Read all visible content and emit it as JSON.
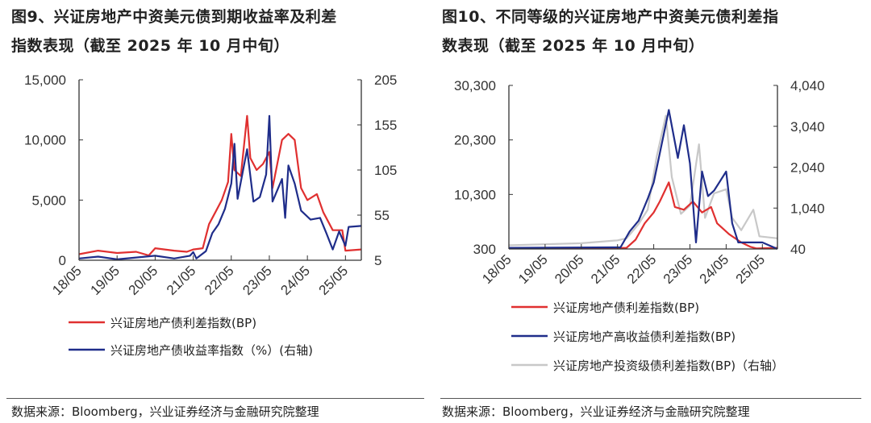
{
  "source_left": "数据来源：Bloomberg，兴业证券经济与金融研究院整理",
  "source_right": "数据来源：Bloomberg，兴业证券经济与金融研究院整理",
  "chart_data": [
    {
      "type": "line",
      "title_line1": "图9、兴证房地产中资美元债到期收益率及利差",
      "title_line2": "指数表现（截至 2025 年 10 月中旬）",
      "x_ticks": [
        "18/05",
        "19/05",
        "20/05",
        "21/05",
        "22/05",
        "23/05",
        "24/05",
        "25/05"
      ],
      "xlim": [
        "2018-05",
        "2025-10"
      ],
      "y_left": {
        "lim": [
          0,
          15000
        ],
        "ticks": [
          "0",
          "5,000",
          "10,000",
          "15,000"
        ],
        "tick_values": [
          0,
          5000,
          10000,
          15000
        ]
      },
      "y_right": {
        "lim": [
          5,
          205
        ],
        "ticks": [
          "5",
          "55",
          "105",
          "155",
          "205"
        ],
        "tick_values": [
          5,
          55,
          105,
          155,
          205
        ]
      },
      "grid": false,
      "legend_position": "bottom",
      "series": [
        {
          "name": "兴证房地产债利差指数(BP)",
          "axis": "left",
          "color": "#e03030",
          "points": [
            [
              "2018-05",
              500
            ],
            [
              "2018-11",
              800
            ],
            [
              "2019-05",
              600
            ],
            [
              "2019-11",
              700
            ],
            [
              "2020-03",
              400
            ],
            [
              "2020-05",
              1000
            ],
            [
              "2020-11",
              800
            ],
            [
              "2021-03",
              700
            ],
            [
              "2021-05",
              900
            ],
            [
              "2021-08",
              1000
            ],
            [
              "2021-10",
              3000
            ],
            [
              "2021-12",
              4000
            ],
            [
              "2022-02",
              5000
            ],
            [
              "2022-04",
              6500
            ],
            [
              "2022-05",
              10500
            ],
            [
              "2022-06",
              7500
            ],
            [
              "2022-08",
              7000
            ],
            [
              "2022-10",
              12000
            ],
            [
              "2022-11",
              8500
            ],
            [
              "2023-01",
              7500
            ],
            [
              "2023-03",
              8000
            ],
            [
              "2023-05",
              9000
            ],
            [
              "2023-06",
              6000
            ],
            [
              "2023-09",
              10000
            ],
            [
              "2023-11",
              10500
            ],
            [
              "2024-01",
              10000
            ],
            [
              "2024-03",
              6000
            ],
            [
              "2024-05",
              5000
            ],
            [
              "2024-08",
              5500
            ],
            [
              "2024-10",
              4000
            ],
            [
              "2025-01",
              2500
            ],
            [
              "2025-04",
              2500
            ],
            [
              "2025-05",
              800
            ],
            [
              "2025-10",
              900
            ]
          ]
        },
        {
          "name": "兴证房地产债收益率指数（%）(右轴)",
          "axis": "right",
          "color": "#1f2d8a",
          "points": [
            [
              "2018-05",
              7
            ],
            [
              "2018-11",
              9
            ],
            [
              "2019-05",
              6
            ],
            [
              "2020-05",
              10
            ],
            [
              "2020-11",
              7
            ],
            [
              "2021-04",
              10
            ],
            [
              "2021-05",
              14
            ],
            [
              "2021-06",
              7
            ],
            [
              "2021-09",
              15
            ],
            [
              "2021-11",
              35
            ],
            [
              "2022-01",
              45
            ],
            [
              "2022-03",
              62
            ],
            [
              "2022-05",
              90
            ],
            [
              "2022-06",
              134
            ],
            [
              "2022-07",
              73
            ],
            [
              "2022-10",
              128
            ],
            [
              "2022-12",
              70
            ],
            [
              "2023-02",
              75
            ],
            [
              "2023-04",
              100
            ],
            [
              "2023-05",
              165
            ],
            [
              "2023-06",
              70
            ],
            [
              "2023-09",
              95
            ],
            [
              "2023-10",
              52
            ],
            [
              "2023-11",
              110
            ],
            [
              "2024-01",
              90
            ],
            [
              "2024-03",
              60
            ],
            [
              "2024-06",
              50
            ],
            [
              "2024-09",
              52
            ],
            [
              "2024-11",
              35
            ],
            [
              "2025-01",
              17
            ],
            [
              "2025-03",
              37
            ],
            [
              "2025-05",
              21
            ],
            [
              "2025-06",
              42
            ],
            [
              "2025-10",
              43
            ]
          ]
        }
      ]
    },
    {
      "type": "line",
      "title_line1": "图10、不同等级的兴证房地产中资美元债利差指",
      "title_line2": "数表现（截至 2025 年 10 月中旬）",
      "x_ticks": [
        "18/05",
        "19/05",
        "20/05",
        "21/05",
        "22/05",
        "23/05",
        "24/05",
        "25/05"
      ],
      "xlim": [
        "2018-05",
        "2025-10"
      ],
      "y_left": {
        "lim": [
          300,
          30300
        ],
        "ticks": [
          "300",
          "10,300",
          "20,300",
          "30,300"
        ],
        "tick_values": [
          300,
          10300,
          20300,
          30300
        ]
      },
      "y_right": {
        "lim": [
          40,
          4040
        ],
        "ticks": [
          "40",
          "1,040",
          "2,040",
          "3,040",
          "4,040"
        ],
        "tick_values": [
          40,
          1040,
          2040,
          3040,
          4040
        ]
      },
      "grid": false,
      "legend_position": "bottom",
      "series": [
        {
          "name": "兴证房地产投资级债利差指数(BP)（右轴）",
          "axis": "right",
          "color": "#c8c8c8",
          "points": [
            [
              "2018-05",
              130
            ],
            [
              "2020-05",
              180
            ],
            [
              "2021-05",
              250
            ],
            [
              "2021-08",
              300
            ],
            [
              "2021-12",
              650
            ],
            [
              "2022-03",
              1000
            ],
            [
              "2022-06",
              2300
            ],
            [
              "2022-09",
              3300
            ],
            [
              "2022-11",
              1800
            ],
            [
              "2023-02",
              900
            ],
            [
              "2023-05",
              1100
            ],
            [
              "2023-08",
              2600
            ],
            [
              "2023-10",
              800
            ],
            [
              "2024-01",
              1400
            ],
            [
              "2024-05",
              1500
            ],
            [
              "2024-07",
              800
            ],
            [
              "2024-10",
              500
            ],
            [
              "2025-02",
              1000
            ],
            [
              "2025-04",
              350
            ],
            [
              "2025-10",
              300
            ]
          ]
        },
        {
          "name": "兴证房地产债利差指数(BP)",
          "axis": "left",
          "color": "#e03030",
          "points": [
            [
              "2018-05",
              400
            ],
            [
              "2021-08",
              500
            ],
            [
              "2021-11",
              2000
            ],
            [
              "2022-02",
              5000
            ],
            [
              "2022-05",
              7000
            ],
            [
              "2022-07",
              9000
            ],
            [
              "2022-10",
              12500
            ],
            [
              "2022-12",
              8000
            ],
            [
              "2023-03",
              7500
            ],
            [
              "2023-06",
              9000
            ],
            [
              "2023-09",
              7000
            ],
            [
              "2023-12",
              8000
            ],
            [
              "2024-02",
              5000
            ],
            [
              "2024-06",
              3000
            ],
            [
              "2024-10",
              1500
            ],
            [
              "2025-01",
              700
            ],
            [
              "2025-03",
              400
            ],
            [
              "2025-10",
              500
            ]
          ]
        },
        {
          "name": "兴证房地产高收益债利差指数(BP)",
          "axis": "left",
          "color": "#1f2d8a",
          "points": [
            [
              "2018-05",
              500
            ],
            [
              "2021-06",
              600
            ],
            [
              "2021-09",
              3500
            ],
            [
              "2021-12",
              5500
            ],
            [
              "2022-03",
              9500
            ],
            [
              "2022-05",
              12500
            ],
            [
              "2022-10",
              25800
            ],
            [
              "2023-01",
              17000
            ],
            [
              "2023-03",
              23000
            ],
            [
              "2023-05",
              16000
            ],
            [
              "2023-07",
              1500
            ],
            [
              "2023-09",
              14500
            ],
            [
              "2023-11",
              10000
            ],
            [
              "2024-01",
              11000
            ],
            [
              "2024-05",
              14500
            ],
            [
              "2024-07",
              5000
            ],
            [
              "2024-09",
              1500
            ],
            [
              "2025-01",
              1500
            ],
            [
              "2025-05",
              1500
            ],
            [
              "2025-10",
              300
            ]
          ]
        }
      ],
      "legend_order": [
        1,
        2,
        0
      ]
    }
  ]
}
